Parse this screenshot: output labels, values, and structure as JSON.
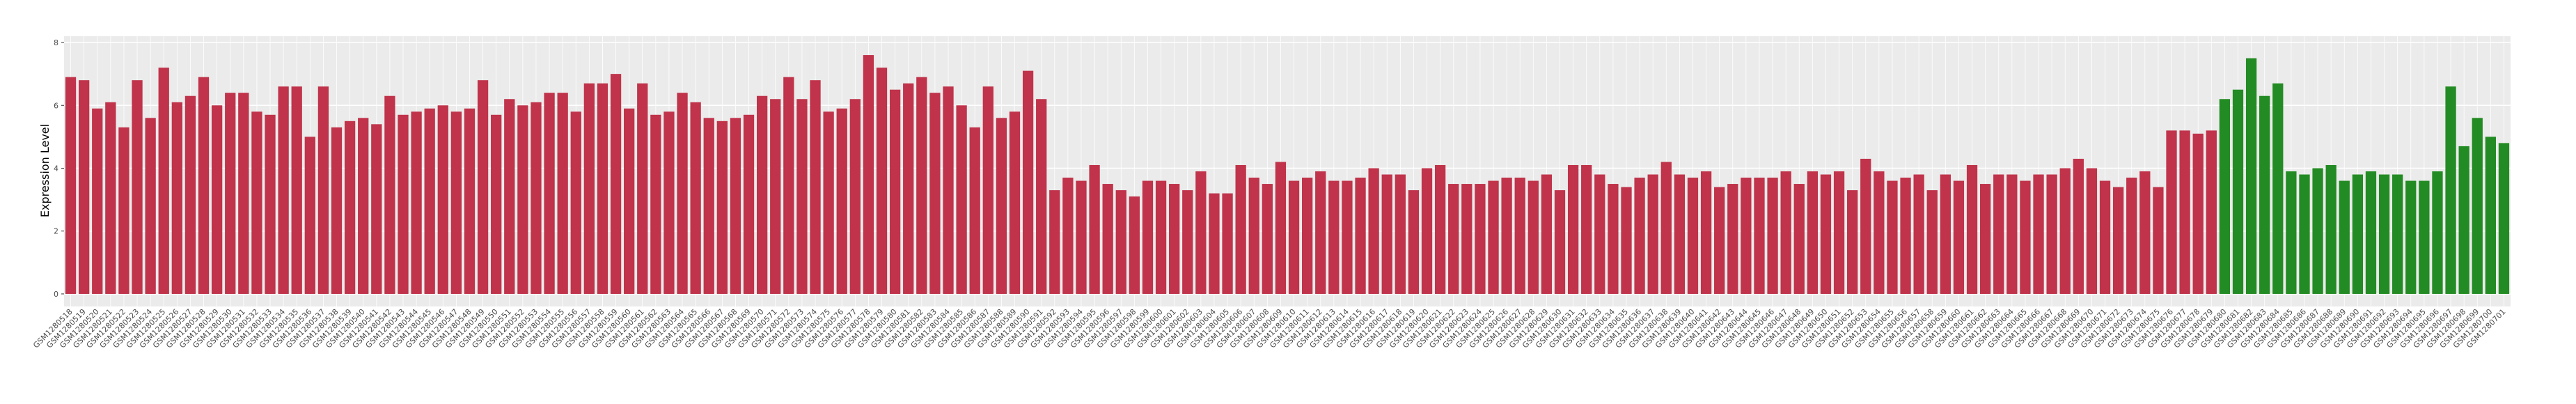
{
  "chart_data": {
    "type": "bar",
    "ylabel": "Expression Level",
    "categories": [
      "GSM1280518",
      "GSM1280519",
      "GSM1280520",
      "GSM1280521",
      "GSM1280522",
      "GSM1280523",
      "GSM1280524",
      "GSM1280525",
      "GSM1280526",
      "GSM1280527",
      "GSM1280528",
      "GSM1280529",
      "GSM1280530",
      "GSM1280531",
      "GSM1280532",
      "GSM1280533",
      "GSM1280534",
      "GSM1280535",
      "GSM1280536",
      "GSM1280537",
      "GSM1280538",
      "GSM1280539",
      "GSM1280540",
      "GSM1280541",
      "GSM1280542",
      "GSM1280543",
      "GSM1280544",
      "GSM1280545",
      "GSM1280546",
      "GSM1280547",
      "GSM1280548",
      "GSM1280549",
      "GSM1280550",
      "GSM1280551",
      "GSM1280552",
      "GSM1280553",
      "GSM1280554",
      "GSM1280555",
      "GSM1280556",
      "GSM1280557",
      "GSM1280558",
      "GSM1280559",
      "GSM1280560",
      "GSM1280561",
      "GSM1280562",
      "GSM1280563",
      "GSM1280564",
      "GSM1280565",
      "GSM1280566",
      "GSM1280567",
      "GSM1280568",
      "GSM1280569",
      "GSM1280570",
      "GSM1280571",
      "GSM1280572",
      "GSM1280573",
      "GSM1280574",
      "GSM1280575",
      "GSM1280576",
      "GSM1280577",
      "GSM1280578",
      "GSM1280579",
      "GSM1280580",
      "GSM1280581",
      "GSM1280582",
      "GSM1280583",
      "GSM1280584",
      "GSM1280585",
      "GSM1280586",
      "GSM1280587",
      "GSM1280588",
      "GSM1280589",
      "GSM1280590",
      "GSM1280591",
      "GSM1280592",
      "GSM1280593",
      "GSM1280594",
      "GSM1280595",
      "GSM1280596",
      "GSM1280597",
      "GSM1280598",
      "GSM1280599",
      "GSM1280600",
      "GSM1280601",
      "GSM1280602",
      "GSM1280603",
      "GSM1280604",
      "GSM1280605",
      "GSM1280606",
      "GSM1280607",
      "GSM1280608",
      "GSM1280609",
      "GSM1280610",
      "GSM1280611",
      "GSM1280612",
      "GSM1280613",
      "GSM1280614",
      "GSM1280615",
      "GSM1280616",
      "GSM1280617",
      "GSM1280618",
      "GSM1280619",
      "GSM1280620",
      "GSM1280621",
      "GSM1280622",
      "GSM1280623",
      "GSM1280624",
      "GSM1280625",
      "GSM1280626",
      "GSM1280627",
      "GSM1280628",
      "GSM1280629",
      "GSM1280630",
      "GSM1280631",
      "GSM1280632",
      "GSM1280633",
      "GSM1280634",
      "GSM1280635",
      "GSM1280636",
      "GSM1280637",
      "GSM1280638",
      "GSM1280639",
      "GSM1280640",
      "GSM1280641",
      "GSM1280642",
      "GSM1280643",
      "GSM1280644",
      "GSM1280645",
      "GSM1280646",
      "GSM1280647",
      "GSM1280648",
      "GSM1280649",
      "GSM1280650",
      "GSM1280651",
      "GSM1280652",
      "GSM1280653",
      "GSM1280654",
      "GSM1280655",
      "GSM1280656",
      "GSM1280657",
      "GSM1280658",
      "GSM1280659",
      "GSM1280660",
      "GSM1280661",
      "GSM1280662",
      "GSM1280663",
      "GSM1280664",
      "GSM1280665",
      "GSM1280666",
      "GSM1280667",
      "GSM1280668",
      "GSM1280669",
      "GSM1280670",
      "GSM1280671",
      "GSM1280672",
      "GSM1280673",
      "GSM1280674",
      "GSM1280675",
      "GSM1280676",
      "GSM1280677",
      "GSM1280678",
      "GSM1280679",
      "GSM1280680",
      "GSM1280681",
      "GSM1280682",
      "GSM1280683",
      "GSM1280684",
      "GSM1280685",
      "GSM1280686",
      "GSM1280687",
      "GSM1280688",
      "GSM1280689",
      "GSM1280690",
      "GSM1280691",
      "GSM1280692",
      "GSM1280693",
      "GSM1280694",
      "GSM1280695",
      "GSM1280696",
      "GSM1280697",
      "GSM1280698",
      "GSM1280699",
      "GSM1280700",
      "GSM1280701"
    ],
    "values": [
      6.9,
      6.8,
      5.9,
      6.1,
      5.3,
      6.8,
      5.6,
      7.2,
      6.1,
      6.3,
      6.9,
      6.0,
      6.4,
      6.4,
      5.8,
      5.7,
      6.6,
      6.6,
      5.0,
      6.6,
      5.3,
      5.5,
      5.6,
      5.4,
      6.3,
      5.7,
      5.8,
      5.9,
      6.0,
      5.8,
      5.9,
      6.8,
      5.7,
      6.2,
      6.0,
      6.1,
      6.4,
      6.4,
      5.8,
      6.7,
      6.7,
      7.0,
      5.9,
      6.7,
      5.7,
      5.8,
      6.4,
      6.1,
      5.6,
      5.5,
      5.6,
      5.7,
      6.3,
      6.2,
      6.9,
      6.2,
      6.8,
      5.8,
      5.9,
      6.2,
      7.6,
      7.2,
      6.5,
      6.7,
      6.9,
      6.4,
      6.6,
      6.0,
      5.3,
      6.6,
      5.6,
      5.8,
      7.1,
      6.2,
      3.3,
      3.7,
      3.6,
      4.1,
      3.5,
      3.3,
      3.1,
      3.6,
      3.6,
      3.5,
      3.3,
      3.9,
      3.2,
      3.2,
      4.1,
      3.7,
      3.5,
      4.2,
      3.6,
      3.7,
      3.9,
      3.6,
      3.6,
      3.7,
      4.0,
      3.8,
      3.8,
      3.3,
      4.0,
      4.1,
      3.5,
      3.5,
      3.5,
      3.6,
      3.7,
      3.7,
      3.6,
      3.8,
      3.3,
      4.1,
      4.1,
      3.8,
      3.5,
      3.4,
      3.7,
      3.8,
      4.2,
      3.8,
      3.7,
      3.9,
      3.4,
      3.5,
      3.7,
      3.7,
      3.7,
      3.9,
      3.5,
      3.9,
      3.8,
      3.9,
      3.3,
      4.3,
      3.9,
      3.6,
      3.7,
      3.8,
      3.3,
      3.8,
      3.6,
      4.1,
      3.5,
      3.8,
      3.8,
      3.6,
      3.8,
      3.8,
      4.0,
      4.3,
      4.0,
      3.6,
      3.4,
      3.7,
      3.9,
      3.4,
      5.2,
      5.2,
      5.1,
      5.2,
      6.2,
      6.5,
      7.5,
      6.3,
      6.7,
      3.9,
      3.8,
      4.0,
      4.1,
      3.6,
      3.8,
      3.9,
      3.8,
      3.8,
      3.6,
      3.6,
      3.9,
      6.6,
      4.7,
      5.6,
      5.0,
      4.8
    ],
    "colors": [
      "#c0334a",
      "#c0334a",
      "#c0334a",
      "#c0334a",
      "#c0334a",
      "#c0334a",
      "#c0334a",
      "#c0334a",
      "#c0334a",
      "#c0334a",
      "#c0334a",
      "#c0334a",
      "#c0334a",
      "#c0334a",
      "#c0334a",
      "#c0334a",
      "#c0334a",
      "#c0334a",
      "#c0334a",
      "#c0334a",
      "#c0334a",
      "#c0334a",
      "#c0334a",
      "#c0334a",
      "#c0334a",
      "#c0334a",
      "#c0334a",
      "#c0334a",
      "#c0334a",
      "#c0334a",
      "#c0334a",
      "#c0334a",
      "#c0334a",
      "#c0334a",
      "#c0334a",
      "#c0334a",
      "#c0334a",
      "#c0334a",
      "#c0334a",
      "#c0334a",
      "#c0334a",
      "#c0334a",
      "#c0334a",
      "#c0334a",
      "#c0334a",
      "#c0334a",
      "#c0334a",
      "#c0334a",
      "#c0334a",
      "#c0334a",
      "#c0334a",
      "#c0334a",
      "#c0334a",
      "#c0334a",
      "#c0334a",
      "#c0334a",
      "#c0334a",
      "#c0334a",
      "#c0334a",
      "#c0334a",
      "#c0334a",
      "#c0334a",
      "#c0334a",
      "#c0334a",
      "#c0334a",
      "#c0334a",
      "#c0334a",
      "#c0334a",
      "#c0334a",
      "#c0334a",
      "#c0334a",
      "#c0334a",
      "#c0334a",
      "#c0334a",
      "#c0334a",
      "#c0334a",
      "#c0334a",
      "#c0334a",
      "#c0334a",
      "#c0334a",
      "#c0334a",
      "#c0334a",
      "#c0334a",
      "#c0334a",
      "#c0334a",
      "#c0334a",
      "#c0334a",
      "#c0334a",
      "#c0334a",
      "#c0334a",
      "#c0334a",
      "#c0334a",
      "#c0334a",
      "#c0334a",
      "#c0334a",
      "#c0334a",
      "#c0334a",
      "#c0334a",
      "#c0334a",
      "#c0334a",
      "#c0334a",
      "#c0334a",
      "#c0334a",
      "#c0334a",
      "#c0334a",
      "#c0334a",
      "#c0334a",
      "#c0334a",
      "#c0334a",
      "#c0334a",
      "#c0334a",
      "#c0334a",
      "#c0334a",
      "#c0334a",
      "#c0334a",
      "#c0334a",
      "#c0334a",
      "#c0334a",
      "#c0334a",
      "#c0334a",
      "#c0334a",
      "#c0334a",
      "#c0334a",
      "#c0334a",
      "#c0334a",
      "#c0334a",
      "#c0334a",
      "#c0334a",
      "#c0334a",
      "#c0334a",
      "#c0334a",
      "#c0334a",
      "#c0334a",
      "#c0334a",
      "#c0334a",
      "#c0334a",
      "#c0334a",
      "#c0334a",
      "#c0334a",
      "#c0334a",
      "#c0334a",
      "#c0334a",
      "#c0334a",
      "#c0334a",
      "#c0334a",
      "#c0334a",
      "#c0334a",
      "#c0334a",
      "#c0334a",
      "#c0334a",
      "#c0334a",
      "#c0334a",
      "#c0334a",
      "#c0334a",
      "#c0334a",
      "#c0334a",
      "#c0334a",
      "#c0334a",
      "#c0334a",
      "#c0334a",
      "#c0334a",
      "#c0334a",
      "#238b23",
      "#238b23",
      "#238b23",
      "#238b23",
      "#238b23",
      "#238b23",
      "#238b23",
      "#238b23",
      "#238b23",
      "#238b23",
      "#238b23",
      "#238b23",
      "#238b23",
      "#238b23",
      "#238b23",
      "#238b23",
      "#238b23",
      "#238b23",
      "#238b23",
      "#238b23",
      "#238b23",
      "#238b23"
    ],
    "ylim": [
      -0.4,
      8.2
    ],
    "yticks": [
      0,
      2,
      4,
      6,
      8
    ],
    "grid": true
  }
}
